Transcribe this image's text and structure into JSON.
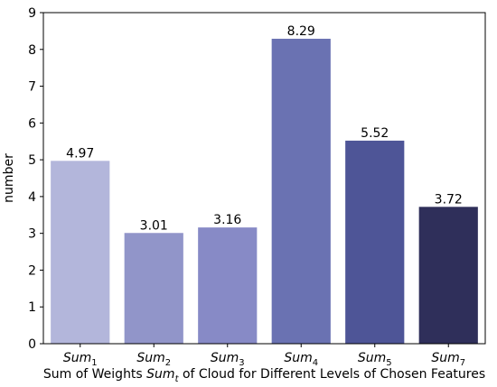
{
  "chart_data": {
    "type": "bar",
    "categories": [
      {
        "base": "Sum",
        "sub": "1"
      },
      {
        "base": "Sum",
        "sub": "2"
      },
      {
        "base": "Sum",
        "sub": "3"
      },
      {
        "base": "Sum",
        "sub": "4"
      },
      {
        "base": "Sum",
        "sub": "5"
      },
      {
        "base": "Sum",
        "sub": "7"
      }
    ],
    "values": [
      4.97,
      3.01,
      3.16,
      8.29,
      5.52,
      3.72
    ],
    "value_labels": [
      "4.97",
      "3.01",
      "3.16",
      "8.29",
      "5.52",
      "3.72"
    ],
    "colors": [
      "#b3b6db",
      "#9195c9",
      "#878ac6",
      "#6a72b2",
      "#4e5597",
      "#2f2f5a"
    ],
    "ylabel": "number",
    "xlabel": {
      "before": "Sum of Weights ",
      "italic": "Sum",
      "sub": "t",
      "after": " of Cloud for Different Levels of Chosen Features"
    },
    "ylim": [
      0,
      9
    ],
    "yticks": [
      0,
      1,
      2,
      3,
      4,
      5,
      6,
      7,
      8,
      9
    ],
    "grid": false
  }
}
